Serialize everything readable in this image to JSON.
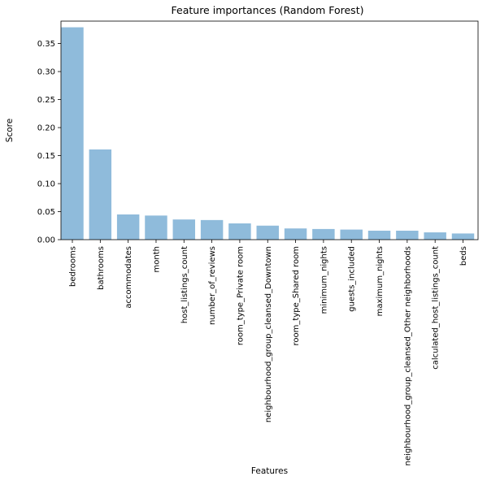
{
  "chart_data": {
    "type": "bar",
    "title": "Feature importances (Random Forest)",
    "xlabel": "Features",
    "ylabel": "Score",
    "ylim": [
      0,
      0.39
    ],
    "yticks": [
      "0.00",
      "0.05",
      "0.10",
      "0.15",
      "0.20",
      "0.25",
      "0.30",
      "0.35"
    ],
    "grid": false,
    "bar_color": "#8fbbdb",
    "categories": [
      "bedrooms",
      "bathrooms",
      "accommodates",
      "month",
      "host_listings_count",
      "number_of_reviews",
      "room_type_Private room",
      "neighbourhood_group_cleansed_Downtown",
      "room_type_Shared room",
      "minimum_nights",
      "guests_included",
      "maximum_nights",
      "neighbourhood_group_cleansed_Other neighborhoods",
      "calculated_host_listings_count",
      "beds"
    ],
    "values": [
      0.379,
      0.161,
      0.045,
      0.043,
      0.036,
      0.035,
      0.029,
      0.025,
      0.02,
      0.019,
      0.018,
      0.016,
      0.016,
      0.013,
      0.011
    ]
  }
}
